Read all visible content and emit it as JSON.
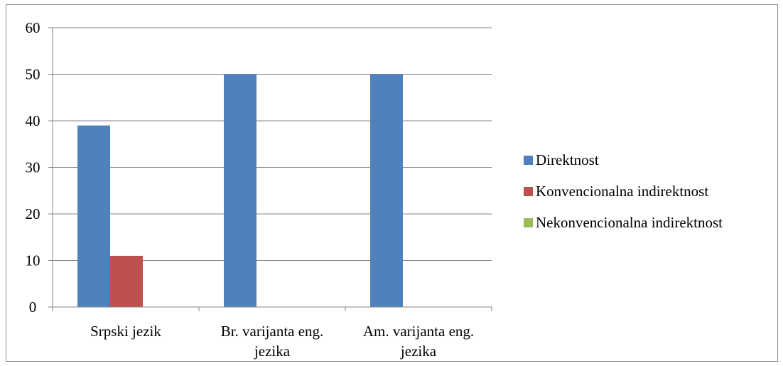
{
  "chart_data": {
    "type": "bar",
    "title": "",
    "xlabel": "",
    "ylabel": "",
    "ylim": [
      0,
      60
    ],
    "yticks": [
      "0",
      "10",
      "20",
      "30",
      "40",
      "50",
      "60"
    ],
    "categories": [
      [
        "Srpski jezik"
      ],
      [
        "Br. varijanta eng.",
        "jezika"
      ],
      [
        "Am. varijanta eng.",
        "jezika"
      ]
    ],
    "series": [
      {
        "name": "Direktnost",
        "color": "#4f81bd",
        "values": [
          39,
          50,
          50
        ]
      },
      {
        "name": "Konvencionalna indirektnost",
        "color": "#c0504d",
        "values": [
          11,
          0,
          0
        ]
      },
      {
        "name": "Nekonvencionalna indirektnost",
        "color": "#9bbb59",
        "values": [
          0,
          0,
          0
        ]
      }
    ],
    "grid": true,
    "legend_position": "right"
  }
}
